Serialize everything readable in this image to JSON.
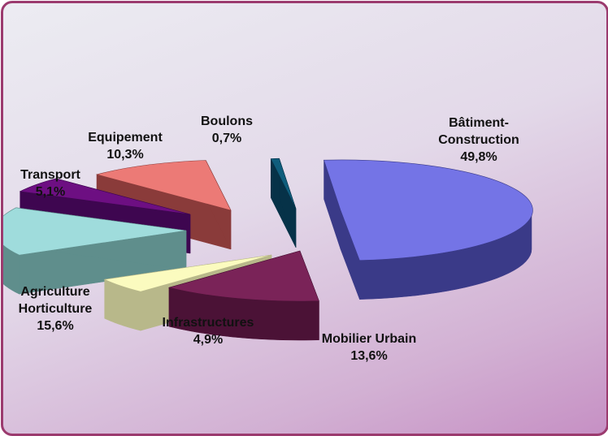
{
  "chart_data": {
    "type": "pie",
    "title": "",
    "unit": "%",
    "slices": [
      {
        "label_lines": [
          "Bâtiment-",
          "Construction"
        ],
        "value": 49.8,
        "value_text": "49,8%",
        "top": "#7474e6",
        "side": "#3a3a88"
      },
      {
        "label_lines": [
          "Mobilier Urbain"
        ],
        "value": 13.6,
        "value_text": "13,6%",
        "top": "#7a2358",
        "side": "#4b1236"
      },
      {
        "label_lines": [
          "Infrastructures"
        ],
        "value": 4.9,
        "value_text": "4,9%",
        "top": "#fbfbbf",
        "side": "#b8b88a"
      },
      {
        "label_lines": [
          "Agriculture",
          "Horticulture"
        ],
        "value": 15.6,
        "value_text": "15,6%",
        "top": "#9fdcdc",
        "side": "#5f8e8c"
      },
      {
        "label_lines": [
          "Transport"
        ],
        "value": 5.1,
        "value_text": "5,1%",
        "top": "#6d0f82",
        "side": "#3e0650"
      },
      {
        "label_lines": [
          "Equipement"
        ],
        "value": 10.3,
        "value_text": "10,3%",
        "top": "#ec7a76",
        "side": "#8a3b3a"
      },
      {
        "label_lines": [
          "Boulons"
        ],
        "value": 0.7,
        "value_text": "0,7%",
        "top": "#0f5d7c",
        "side": "#063248"
      }
    ]
  }
}
